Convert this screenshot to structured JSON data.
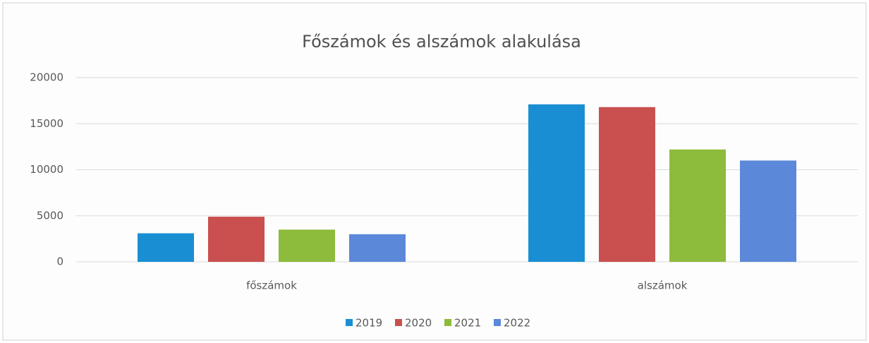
{
  "chart_data": {
    "type": "bar",
    "title": "Főszámok és alszámok alakulása",
    "categories": [
      "főszámok",
      "alszámok"
    ],
    "series": [
      {
        "name": "2019",
        "color": "#1a8ed3",
        "values": [
          3100,
          17100
        ]
      },
      {
        "name": "2020",
        "color": "#c9504f",
        "values": [
          4900,
          16800
        ]
      },
      {
        "name": "2021",
        "color": "#8dbb3c",
        "values": [
          3500,
          12200
        ]
      },
      {
        "name": "2022",
        "color": "#5b88d9",
        "values": [
          3000,
          11000
        ]
      }
    ],
    "ylim": [
      0,
      20000
    ],
    "yticks": [
      0,
      5000,
      10000,
      15000,
      20000
    ],
    "grid": true,
    "legend": "bottom"
  }
}
